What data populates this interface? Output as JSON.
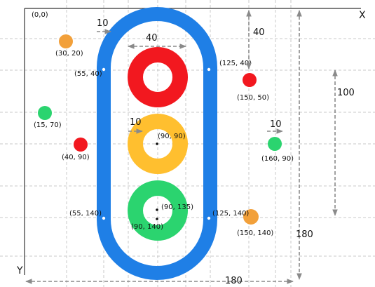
{
  "colors": {
    "blue": "#1f7fe6",
    "red": "#f2181f",
    "yellow": "#ffbf2f",
    "green": "#2bd46f",
    "orange": "#f2a03a",
    "grid": "#c8c8c8",
    "dim": "#8a8a8a"
  },
  "axes": {
    "origin": "(0,0)",
    "x": "X",
    "y": "Y"
  },
  "points": {
    "p30_20": "(30, 20)",
    "p15_70": "(15, 70)",
    "p40_90": "(40,  90)",
    "p55_40": "(55, 40)",
    "p55_140": "(55, 140)",
    "p125_40": "(125, 40)",
    "p125_140": "(125, 140)",
    "p150_50": "(150,  50)",
    "p160_90": "(160,  90)",
    "p150_140": "(150,  140)",
    "p90_90": "(90, 90)",
    "p90_135": "(90, 135)",
    "p90_140": "(90, 140)"
  },
  "dimensions": {
    "stroke_width": "10",
    "lamp_width": "40",
    "top_offset": "40",
    "height_100": "100",
    "ring_width": "10",
    "dot_width": "10",
    "total_height": "180",
    "total_width": "180"
  }
}
